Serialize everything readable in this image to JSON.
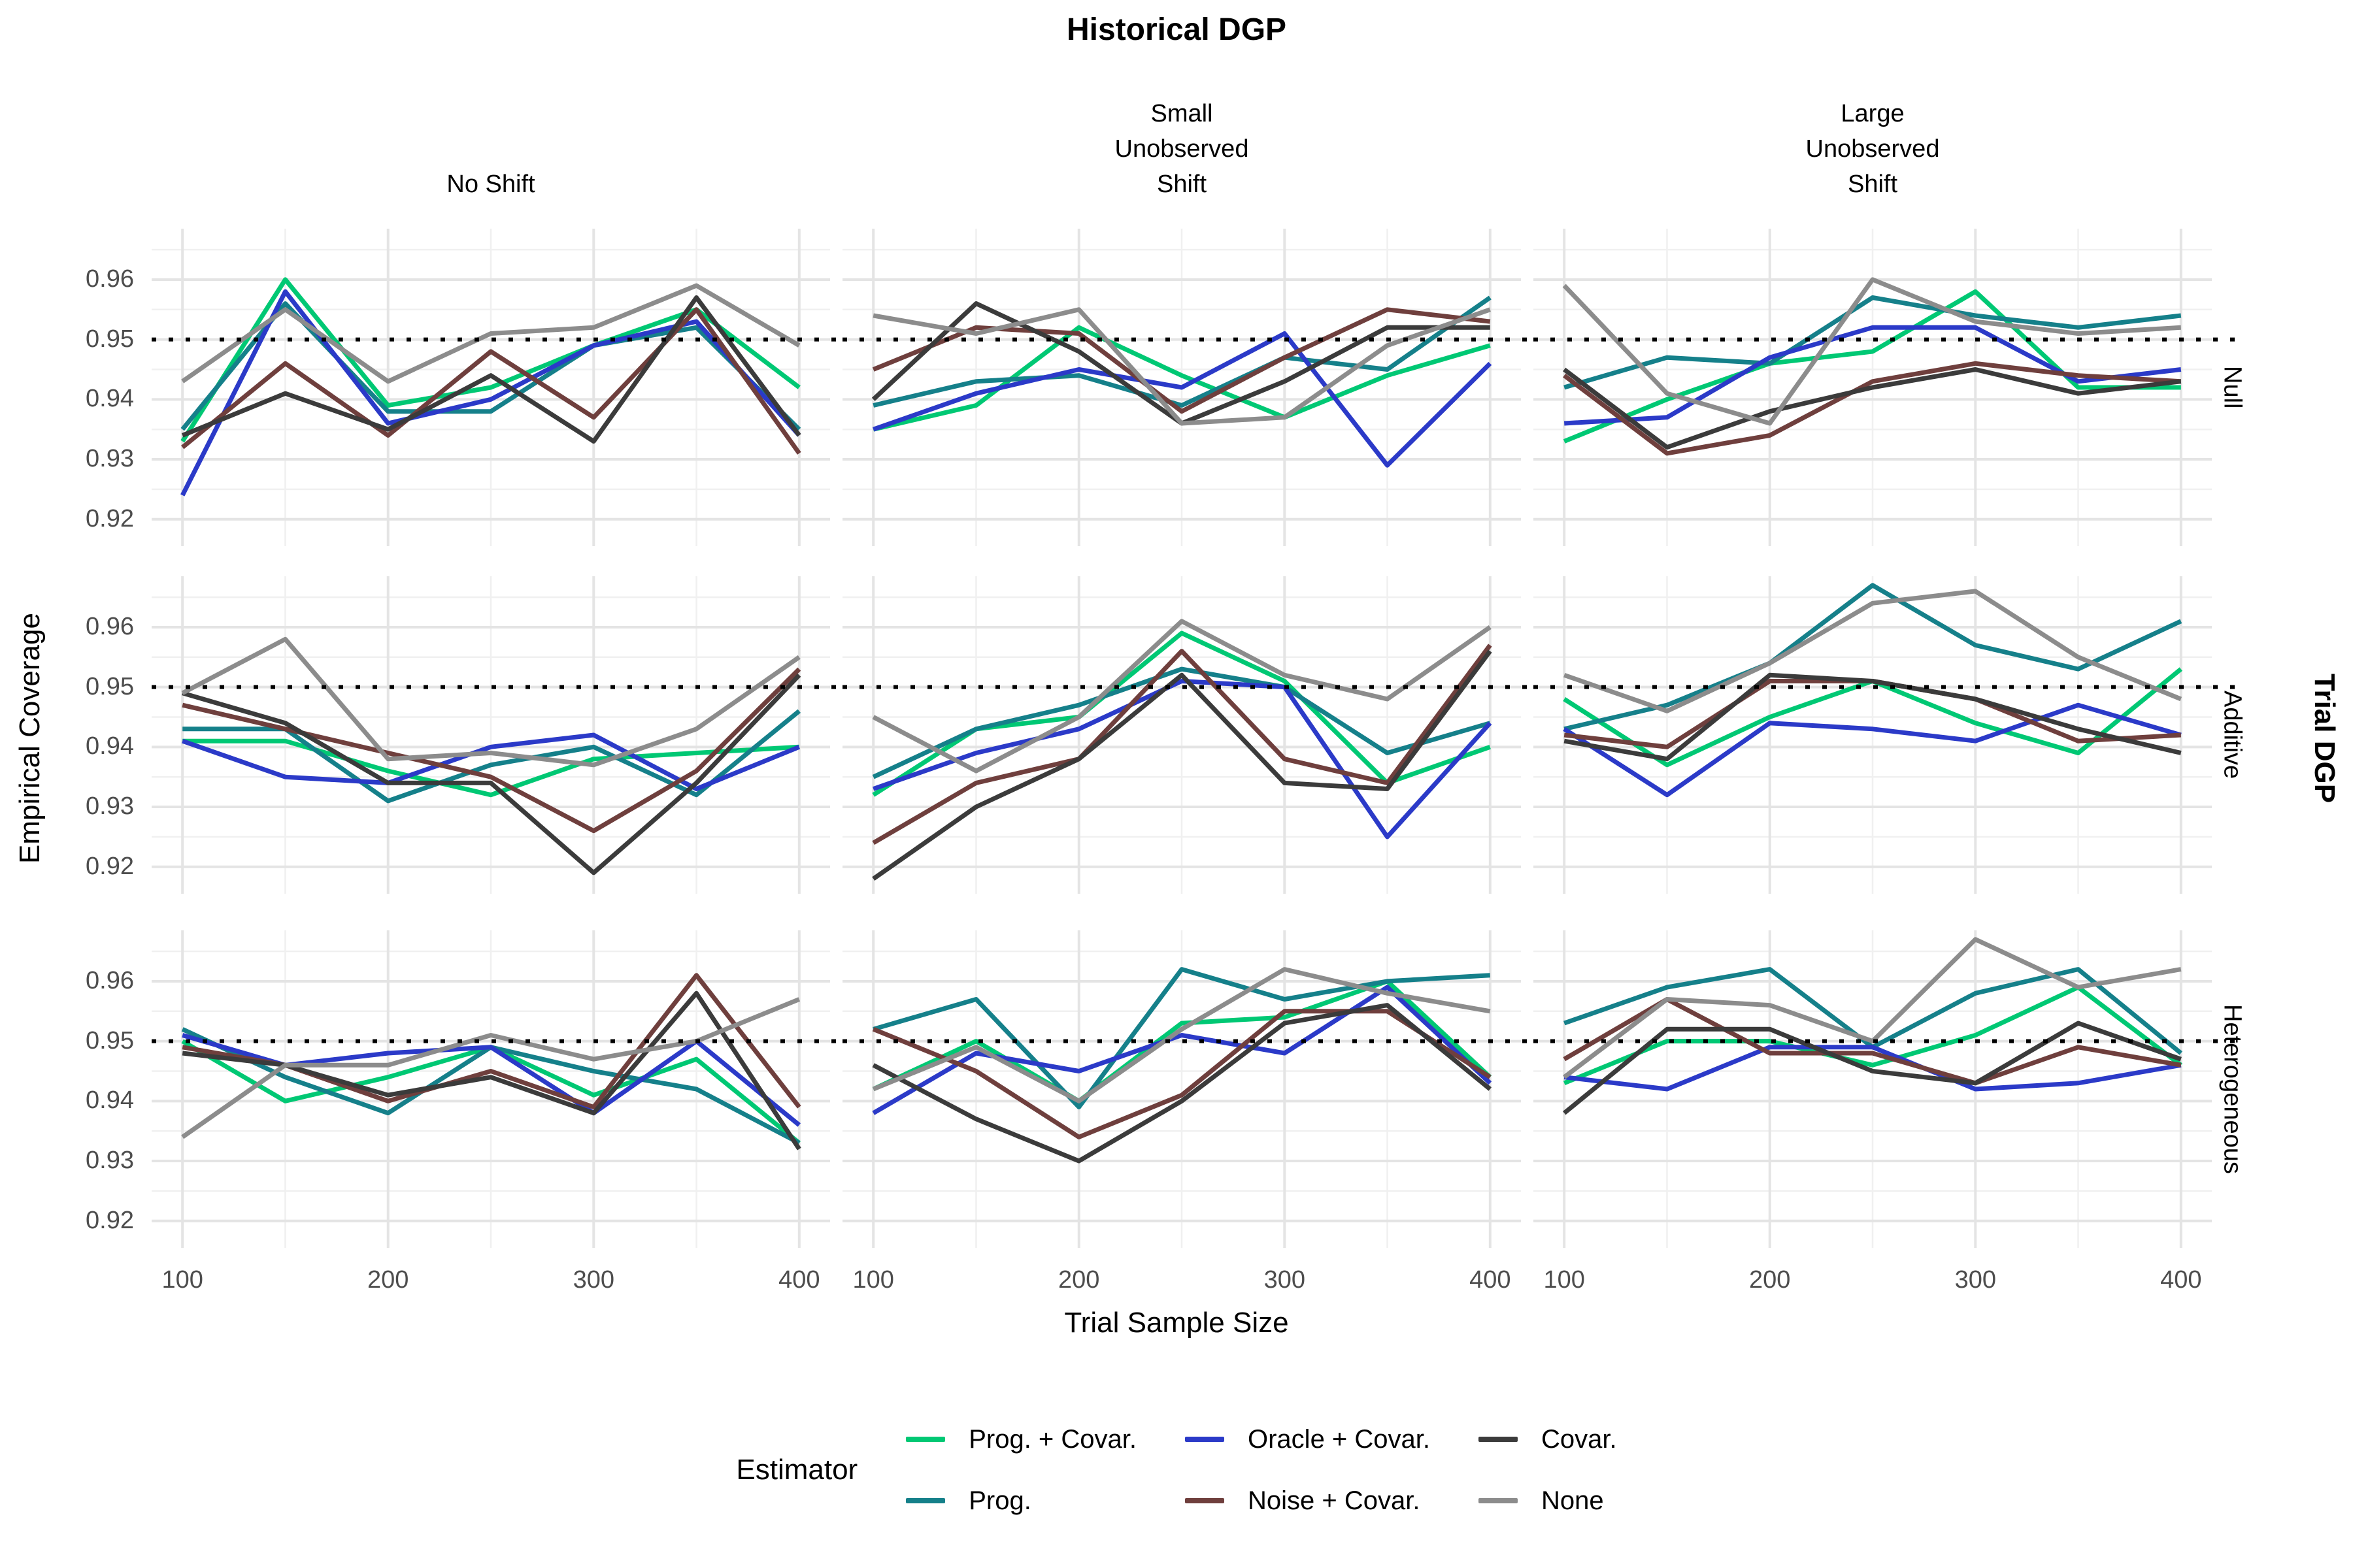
{
  "title": "Historical DGP",
  "axes": {
    "x_title": "Trial Sample Size",
    "y_title": "Empirical Coverage",
    "right_title": "Trial DGP",
    "x_tick_labels": [
      "100",
      "200",
      "300",
      "400"
    ],
    "y_tick_labels": [
      "0.96",
      "0.95",
      "0.94",
      "0.93",
      "0.92"
    ]
  },
  "col_headers": [
    "No Shift",
    "Small\nUnobserved\nShift",
    "Large\nUnobserved\nShift"
  ],
  "row_strips": [
    "Null",
    "Additive",
    "Heterogeneous"
  ],
  "legend": {
    "title": "Estimator",
    "entries": [
      {
        "label": "Prog. + Covar.",
        "color": "#00C874"
      },
      {
        "label": "Prog.",
        "color": "#15808A"
      },
      {
        "label": "Oracle + Covar.",
        "color": "#2B3AC8"
      },
      {
        "label": "Noise + Covar.",
        "color": "#6F3F3D"
      },
      {
        "label": "Covar.",
        "color": "#3B3B3B"
      },
      {
        "label": "None",
        "color": "#8C8C8C"
      }
    ]
  },
  "chart_data": {
    "type": "line",
    "title": "Historical DGP",
    "xlabel": "Trial Sample Size",
    "ylabel": "Empirical Coverage",
    "legend_position": "bottom",
    "grid": true,
    "reference_y": 0.95,
    "x": [
      100,
      150,
      200,
      250,
      300,
      350,
      400
    ],
    "x_ticks": [
      100,
      200,
      300,
      400
    ],
    "y_ticks": [
      0.92,
      0.93,
      0.94,
      0.95,
      0.96
    ],
    "x_domain": [
      85,
      415
    ],
    "y_domain": [
      0.9155,
      0.9685
    ],
    "series": [
      {
        "name": "Prog. + Covar.",
        "color": "#00C874"
      },
      {
        "name": "Prog.",
        "color": "#15808A"
      },
      {
        "name": "Oracle + Covar.",
        "color": "#2B3AC8"
      },
      {
        "name": "Noise + Covar.",
        "color": "#6F3F3D"
      },
      {
        "name": "Covar.",
        "color": "#3B3B3B"
      },
      {
        "name": "None",
        "color": "#8C8C8C"
      }
    ],
    "facet_rows": [
      "Null",
      "Additive",
      "Heterogeneous"
    ],
    "facet_cols": [
      "No Shift",
      "Small Unobserved Shift",
      "Large Unobserved Shift"
    ],
    "facets": [
      {
        "row": "Null",
        "col": "No Shift",
        "values": {
          "Prog. + Covar.": [
            0.933,
            0.96,
            0.939,
            0.942,
            0.949,
            0.955,
            0.942
          ],
          "Prog.": [
            0.935,
            0.956,
            0.938,
            0.938,
            0.949,
            0.952,
            0.935
          ],
          "Oracle + Covar.": [
            0.924,
            0.958,
            0.936,
            0.94,
            0.949,
            0.953,
            0.934
          ],
          "Noise + Covar.": [
            0.932,
            0.946,
            0.934,
            0.948,
            0.937,
            0.955,
            0.931
          ],
          "Covar.": [
            0.934,
            0.941,
            0.935,
            0.944,
            0.933,
            0.957,
            0.934
          ],
          "None": [
            0.943,
            0.955,
            0.943,
            0.951,
            0.952,
            0.959,
            0.949
          ]
        }
      },
      {
        "row": "Null",
        "col": "Small Unobserved Shift",
        "values": {
          "Prog. + Covar.": [
            0.935,
            0.939,
            0.952,
            0.944,
            0.937,
            0.944,
            0.949
          ],
          "Prog.": [
            0.939,
            0.943,
            0.944,
            0.939,
            0.947,
            0.945,
            0.957
          ],
          "Oracle + Covar.": [
            0.935,
            0.941,
            0.945,
            0.942,
            0.951,
            0.929,
            0.946
          ],
          "Noise + Covar.": [
            0.945,
            0.952,
            0.951,
            0.938,
            0.947,
            0.955,
            0.953
          ],
          "Covar.": [
            0.94,
            0.956,
            0.948,
            0.936,
            0.943,
            0.952,
            0.952
          ],
          "None": [
            0.954,
            0.951,
            0.955,
            0.936,
            0.937,
            0.949,
            0.955
          ]
        }
      },
      {
        "row": "Null",
        "col": "Large Unobserved Shift",
        "values": {
          "Prog. + Covar.": [
            0.933,
            0.94,
            0.946,
            0.948,
            0.958,
            0.942,
            0.942
          ],
          "Prog.": [
            0.942,
            0.947,
            0.946,
            0.957,
            0.954,
            0.952,
            0.954
          ],
          "Oracle + Covar.": [
            0.936,
            0.937,
            0.947,
            0.952,
            0.952,
            0.943,
            0.945
          ],
          "Noise + Covar.": [
            0.944,
            0.931,
            0.934,
            0.943,
            0.946,
            0.944,
            0.943
          ],
          "Covar.": [
            0.945,
            0.932,
            0.938,
            0.942,
            0.945,
            0.941,
            0.943
          ],
          "None": [
            0.959,
            0.941,
            0.936,
            0.96,
            0.953,
            0.951,
            0.952
          ]
        }
      },
      {
        "row": "Additive",
        "col": "No Shift",
        "values": {
          "Prog. + Covar.": [
            0.941,
            0.941,
            0.936,
            0.932,
            0.938,
            0.939,
            0.94
          ],
          "Prog.": [
            0.943,
            0.943,
            0.931,
            0.937,
            0.94,
            0.932,
            0.946
          ],
          "Oracle + Covar.": [
            0.941,
            0.935,
            0.934,
            0.94,
            0.942,
            0.933,
            0.94
          ],
          "Noise + Covar.": [
            0.947,
            0.943,
            0.939,
            0.935,
            0.926,
            0.936,
            0.953
          ],
          "Covar.": [
            0.949,
            0.944,
            0.934,
            0.934,
            0.919,
            0.934,
            0.952
          ],
          "None": [
            0.949,
            0.958,
            0.938,
            0.939,
            0.937,
            0.943,
            0.955
          ]
        }
      },
      {
        "row": "Additive",
        "col": "Small Unobserved Shift",
        "values": {
          "Prog. + Covar.": [
            0.932,
            0.943,
            0.945,
            0.959,
            0.951,
            0.934,
            0.94
          ],
          "Prog.": [
            0.935,
            0.943,
            0.947,
            0.953,
            0.95,
            0.939,
            0.944
          ],
          "Oracle + Covar.": [
            0.933,
            0.939,
            0.943,
            0.951,
            0.95,
            0.925,
            0.944
          ],
          "Noise + Covar.": [
            0.924,
            0.934,
            0.938,
            0.956,
            0.938,
            0.934,
            0.957
          ],
          "Covar.": [
            0.918,
            0.93,
            0.938,
            0.952,
            0.934,
            0.933,
            0.956
          ],
          "None": [
            0.945,
            0.936,
            0.945,
            0.961,
            0.952,
            0.948,
            0.96
          ]
        }
      },
      {
        "row": "Additive",
        "col": "Large Unobserved Shift",
        "values": {
          "Prog. + Covar.": [
            0.948,
            0.937,
            0.945,
            0.951,
            0.944,
            0.939,
            0.953
          ],
          "Prog.": [
            0.943,
            0.947,
            0.954,
            0.967,
            0.957,
            0.953,
            0.961
          ],
          "Oracle + Covar.": [
            0.943,
            0.932,
            0.944,
            0.943,
            0.941,
            0.947,
            0.942
          ],
          "Noise + Covar.": [
            0.942,
            0.94,
            0.951,
            0.951,
            0.948,
            0.941,
            0.942
          ],
          "Covar.": [
            0.941,
            0.938,
            0.952,
            0.951,
            0.948,
            0.943,
            0.939
          ],
          "None": [
            0.952,
            0.946,
            0.954,
            0.964,
            0.966,
            0.955,
            0.948
          ]
        }
      },
      {
        "row": "Heterogeneous",
        "col": "No Shift",
        "values": {
          "Prog. + Covar.": [
            0.95,
            0.94,
            0.944,
            0.949,
            0.941,
            0.947,
            0.933
          ],
          "Prog.": [
            0.952,
            0.944,
            0.938,
            0.949,
            0.945,
            0.942,
            0.933
          ],
          "Oracle + Covar.": [
            0.951,
            0.946,
            0.948,
            0.949,
            0.938,
            0.95,
            0.936
          ],
          "Noise + Covar.": [
            0.949,
            0.946,
            0.94,
            0.945,
            0.939,
            0.961,
            0.939
          ],
          "Covar.": [
            0.948,
            0.946,
            0.941,
            0.944,
            0.938,
            0.958,
            0.932
          ],
          "None": [
            0.934,
            0.946,
            0.946,
            0.951,
            0.947,
            0.95,
            0.957
          ]
        }
      },
      {
        "row": "Heterogeneous",
        "col": "Small Unobserved Shift",
        "values": {
          "Prog. + Covar.": [
            0.942,
            0.95,
            0.94,
            0.953,
            0.954,
            0.96,
            0.944
          ],
          "Prog.": [
            0.952,
            0.957,
            0.939,
            0.962,
            0.957,
            0.96,
            0.961
          ],
          "Oracle + Covar.": [
            0.938,
            0.948,
            0.945,
            0.951,
            0.948,
            0.959,
            0.943
          ],
          "Noise + Covar.": [
            0.952,
            0.945,
            0.934,
            0.941,
            0.955,
            0.955,
            0.944
          ],
          "Covar.": [
            0.946,
            0.937,
            0.93,
            0.94,
            0.953,
            0.956,
            0.942
          ],
          "None": [
            0.942,
            0.949,
            0.94,
            0.952,
            0.962,
            0.958,
            0.955
          ]
        }
      },
      {
        "row": "Heterogeneous",
        "col": "Large Unobserved Shift",
        "values": {
          "Prog. + Covar.": [
            0.943,
            0.95,
            0.95,
            0.946,
            0.951,
            0.959,
            0.946
          ],
          "Prog.": [
            0.953,
            0.959,
            0.962,
            0.949,
            0.958,
            0.962,
            0.948
          ],
          "Oracle + Covar.": [
            0.944,
            0.942,
            0.949,
            0.949,
            0.942,
            0.943,
            0.946
          ],
          "Noise + Covar.": [
            0.947,
            0.957,
            0.948,
            0.948,
            0.943,
            0.949,
            0.946
          ],
          "Covar.": [
            0.938,
            0.952,
            0.952,
            0.945,
            0.943,
            0.953,
            0.947
          ],
          "None": [
            0.944,
            0.957,
            0.956,
            0.95,
            0.967,
            0.959,
            0.962
          ]
        }
      }
    ]
  }
}
